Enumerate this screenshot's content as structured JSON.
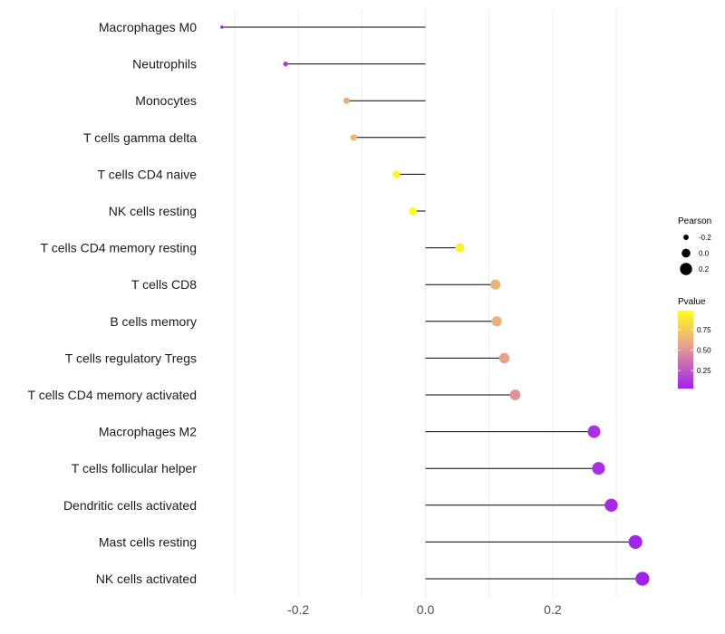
{
  "chart_data": {
    "type": "lollipop",
    "title": "",
    "xlabel": "",
    "ylabel": "",
    "xlim": [
      -0.3,
      0.33
    ],
    "xticks": [
      -0.2,
      0.0,
      0.2
    ],
    "xtick_labels": [
      "-0.2",
      "0.0",
      "0.2"
    ],
    "grid": "vertical",
    "baseline": 0,
    "categories": [
      "Macrophages M0",
      "Neutrophils",
      "Monocytes",
      "T cells gamma delta",
      "T cells CD4 naive",
      "NK cells resting",
      "T cells CD4 memory resting",
      "T cells CD8",
      "B cells memory",
      "T cells regulatory  Tregs ",
      "T cells CD4 memory activated",
      "Macrophages M2",
      "T cells follicular helper",
      "Dendritic cells activated",
      "Mast cells resting",
      "NK cells activated"
    ],
    "pearson": [
      -0.32,
      -0.22,
      -0.124,
      -0.113,
      -0.046,
      -0.02,
      0.054,
      0.11,
      0.112,
      0.124,
      0.141,
      0.265,
      0.272,
      0.292,
      0.33,
      0.341
    ],
    "pvalue": [
      0.03,
      0.12,
      0.6,
      0.65,
      0.95,
      0.98,
      0.92,
      0.64,
      0.63,
      0.56,
      0.5,
      0.1,
      0.09,
      0.07,
      0.05,
      0.04
    ],
    "legend": {
      "size": {
        "title": "Pearson",
        "entries": [
          {
            "label": "-0.2",
            "value": -0.2
          },
          {
            "label": "0.0",
            "value": 0.0
          },
          {
            "label": "0.2",
            "value": 0.2
          }
        ]
      },
      "color": {
        "title": "Pvalue",
        "range": [
          0.03,
          0.98
        ],
        "ticks": [
          {
            "label": "0.75",
            "value": 0.75
          },
          {
            "label": "0.50",
            "value": 0.5
          },
          {
            "label": "0.25",
            "value": 0.25
          }
        ]
      },
      "placement": "right"
    },
    "colors": {
      "low": "#a020f0",
      "mid": "#e8a08c",
      "high": "#ffff1a",
      "stem": "#000000",
      "grid": "#ebebeb"
    }
  }
}
